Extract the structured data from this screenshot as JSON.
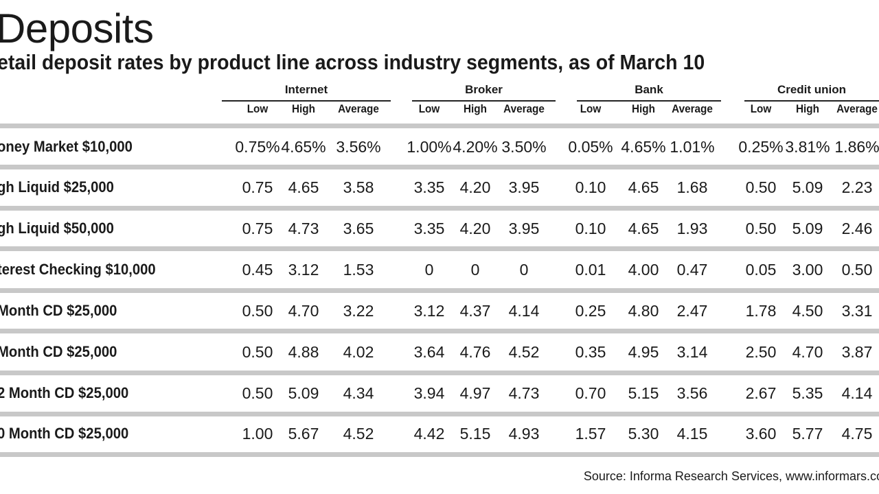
{
  "chart_data": {
    "type": "table",
    "title": "Deposits",
    "subtitle": "etail deposit rates by product line across industry segments, as of March 10",
    "groups": [
      {
        "name": "Internet",
        "columns": [
          "Low",
          "High",
          "Average"
        ]
      },
      {
        "name": "Broker",
        "columns": [
          "Low",
          "High",
          "Average"
        ]
      },
      {
        "name": "Bank",
        "columns": [
          "Low",
          "High",
          "Average"
        ]
      },
      {
        "name": "Credit union",
        "columns": [
          "Low",
          "High",
          "Average"
        ]
      }
    ],
    "rows": [
      {
        "label": "oney Market $10,000",
        "values": [
          "0.75%",
          "4.65%",
          "3.56%",
          "1.00%",
          "4.20%",
          "3.50%",
          "0.05%",
          "4.65%",
          "1.01%",
          "0.25%",
          "3.81%",
          "1.86%"
        ]
      },
      {
        "label": "gh Liquid $25,000",
        "values": [
          "0.75",
          "4.65",
          "3.58",
          "3.35",
          "4.20",
          "3.95",
          "0.10",
          "4.65",
          "1.68",
          "0.50",
          "5.09",
          "2.23"
        ]
      },
      {
        "label": "gh Liquid $50,000",
        "values": [
          "0.75",
          "4.73",
          "3.65",
          "3.35",
          "4.20",
          "3.95",
          "0.10",
          "4.65",
          "1.93",
          "0.50",
          "5.09",
          "2.46"
        ]
      },
      {
        "label": "terest Checking $10,000",
        "values": [
          "0.45",
          "3.12",
          "1.53",
          "0",
          "0",
          "0",
          "0.01",
          "4.00",
          "0.47",
          "0.05",
          "3.00",
          "0.50"
        ]
      },
      {
        "label": "Month CD $25,000",
        "values": [
          "0.50",
          "4.70",
          "3.22",
          "3.12",
          "4.37",
          "4.14",
          "0.25",
          "4.80",
          "2.47",
          "1.78",
          "4.50",
          "3.31"
        ]
      },
      {
        "label": "Month CD $25,000",
        "values": [
          "0.50",
          "4.88",
          "4.02",
          "3.64",
          "4.76",
          "4.52",
          "0.35",
          "4.95",
          "3.14",
          "2.50",
          "4.70",
          "3.87"
        ]
      },
      {
        "label": "2 Month CD $25,000",
        "values": [
          "0.50",
          "5.09",
          "4.34",
          "3.94",
          "4.97",
          "4.73",
          "0.70",
          "5.15",
          "3.56",
          "2.67",
          "5.35",
          "4.14"
        ]
      },
      {
        "label": "0 Month CD $25,000",
        "values": [
          "1.00",
          "5.67",
          "4.52",
          "4.42",
          "5.15",
          "4.93",
          "1.57",
          "5.30",
          "4.15",
          "3.60",
          "5.77",
          "4.75"
        ]
      }
    ],
    "source": "Source: Informa Research Services, www.informars.co"
  }
}
